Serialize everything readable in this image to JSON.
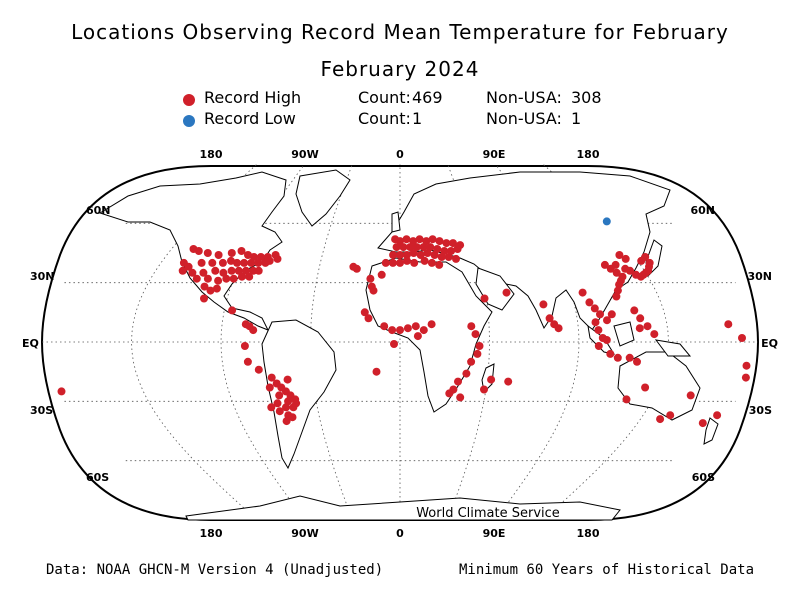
{
  "title": "Locations Observing Record Mean Temperature for February",
  "subtitle": "February 2024",
  "colors": {
    "record_high": "#d0202a",
    "record_low": "#2b77c0"
  },
  "legend": [
    {
      "label": "Record High",
      "count_label": "Count:",
      "count": "469",
      "nonusa_label": "Non-USA:",
      "nonusa": "308"
    },
    {
      "label": "Record Low",
      "count_label": "Count:",
      "count": "1",
      "nonusa_label": "Non-USA:",
      "nonusa": "1"
    }
  ],
  "axes": {
    "top_lon": [
      "180",
      "90W",
      "0",
      "90E",
      "180"
    ],
    "bottom_lon": [
      "180",
      "90W",
      "0",
      "90E",
      "180"
    ],
    "left_lat": [
      "60N",
      "30N",
      "EQ",
      "30S",
      "60S"
    ],
    "right_lat": [
      "60N",
      "30N",
      "EQ",
      "30S",
      "60S"
    ]
  },
  "credit": "World Climate Service",
  "footer": {
    "left": "Data: NOAA GHCN-M Version 4 (Unadjusted)",
    "right": "Minimum 60 Years of Historical Data"
  },
  "map_data": {
    "projection": "robinson",
    "record_low_points": [
      [
        137,
        61
      ]
    ],
    "record_high_points": [
      [
        -122,
        47
      ],
      [
        -118,
        46
      ],
      [
        -112,
        45
      ],
      [
        -105,
        44
      ],
      [
        -98,
        45
      ],
      [
        -93,
        46
      ],
      [
        -88,
        44
      ],
      [
        -84,
        43
      ],
      [
        -80,
        43
      ],
      [
        -76,
        43
      ],
      [
        -72,
        44
      ],
      [
        -70,
        42
      ],
      [
        -122,
        40
      ],
      [
        -118,
        38
      ],
      [
        -112,
        40
      ],
      [
        -106,
        40
      ],
      [
        -100,
        40
      ],
      [
        -96,
        41
      ],
      [
        -92,
        40
      ],
      [
        -88,
        40
      ],
      [
        -84,
        40
      ],
      [
        -80,
        40
      ],
      [
        -76,
        40
      ],
      [
        -74,
        41
      ],
      [
        -120,
        36
      ],
      [
        -114,
        35
      ],
      [
        -108,
        35
      ],
      [
        -102,
        36
      ],
      [
        -97,
        35
      ],
      [
        -93,
        36
      ],
      [
        -89,
        36
      ],
      [
        -85,
        36
      ],
      [
        -81,
        36
      ],
      [
        -78,
        36
      ],
      [
        -110,
        32
      ],
      [
        -104,
        32
      ],
      [
        -98,
        31
      ],
      [
        -94,
        32
      ],
      [
        -90,
        32
      ],
      [
        -86,
        33
      ],
      [
        -82,
        33
      ],
      [
        -104,
        28
      ],
      [
        -100,
        26
      ],
      [
        -97,
        27
      ],
      [
        -102,
        22
      ],
      [
        -86,
        16
      ],
      [
        -78,
        9
      ],
      [
        -76,
        8
      ],
      [
        -74,
        6
      ],
      [
        -78,
        -2
      ],
      [
        -77,
        -10
      ],
      [
        -72,
        -14
      ],
      [
        -66,
        -18
      ],
      [
        -64,
        -21
      ],
      [
        -62,
        -23
      ],
      [
        -60,
        -25
      ],
      [
        -58,
        -27
      ],
      [
        -56,
        -29
      ],
      [
        -60,
        -30
      ],
      [
        -64,
        -27
      ],
      [
        -66,
        -31
      ],
      [
        -62,
        -33
      ],
      [
        -58,
        -33
      ],
      [
        -56,
        -31
      ],
      [
        -62,
        -37
      ],
      [
        -64,
        -40
      ],
      [
        -60,
        -38
      ],
      [
        -70,
        -33
      ],
      [
        -66,
        -35
      ],
      [
        -68,
        -23
      ],
      [
        -58,
        -19
      ],
      [
        -3,
        52
      ],
      [
        0,
        51
      ],
      [
        4,
        52
      ],
      [
        8,
        51
      ],
      [
        12,
        52
      ],
      [
        16,
        51
      ],
      [
        20,
        52
      ],
      [
        24,
        51
      ],
      [
        28,
        50
      ],
      [
        32,
        50
      ],
      [
        36,
        49
      ],
      [
        -2,
        48
      ],
      [
        2,
        48
      ],
      [
        6,
        48
      ],
      [
        10,
        48
      ],
      [
        14,
        48
      ],
      [
        18,
        48
      ],
      [
        22,
        47
      ],
      [
        26,
        46
      ],
      [
        30,
        46
      ],
      [
        34,
        47
      ],
      [
        -4,
        44
      ],
      [
        0,
        44
      ],
      [
        4,
        44
      ],
      [
        8,
        45
      ],
      [
        12,
        44
      ],
      [
        16,
        45
      ],
      [
        20,
        44
      ],
      [
        24,
        43
      ],
      [
        28,
        43
      ],
      [
        32,
        42
      ],
      [
        -8,
        40
      ],
      [
        -4,
        40
      ],
      [
        0,
        40
      ],
      [
        4,
        41
      ],
      [
        8,
        40
      ],
      [
        14,
        41
      ],
      [
        18,
        40
      ],
      [
        22,
        39
      ],
      [
        -26,
        38
      ],
      [
        -24,
        37
      ],
      [
        -16,
        32
      ],
      [
        -15,
        28
      ],
      [
        -10,
        34
      ],
      [
        -14,
        26
      ],
      [
        -18,
        15
      ],
      [
        -16,
        12
      ],
      [
        -8,
        8
      ],
      [
        -4,
        6
      ],
      [
        0,
        6
      ],
      [
        4,
        7
      ],
      [
        8,
        8
      ],
      [
        12,
        6
      ],
      [
        16,
        9
      ],
      [
        9,
        3
      ],
      [
        -12,
        -15
      ],
      [
        -3,
        -1
      ],
      [
        36,
        8
      ],
      [
        38,
        4
      ],
      [
        40,
        -2
      ],
      [
        39,
        -6
      ],
      [
        36,
        -10
      ],
      [
        34,
        -16
      ],
      [
        30,
        -20
      ],
      [
        28,
        -24
      ],
      [
        26,
        -26
      ],
      [
        32,
        -28
      ],
      [
        47,
        -19
      ],
      [
        44,
        -24
      ],
      [
        56,
        -20
      ],
      [
        44,
        22
      ],
      [
        56,
        25
      ],
      [
        74,
        19
      ],
      [
        76,
        12
      ],
      [
        78,
        9
      ],
      [
        80,
        7
      ],
      [
        96,
        25
      ],
      [
        98,
        20
      ],
      [
        100,
        17
      ],
      [
        102,
        14
      ],
      [
        99,
        10
      ],
      [
        100,
        6
      ],
      [
        102,
        2
      ],
      [
        104,
        1
      ],
      [
        100,
        -2
      ],
      [
        106,
        -6
      ],
      [
        110,
        -8
      ],
      [
        116,
        -8
      ],
      [
        120,
        -10
      ],
      [
        105,
        11
      ],
      [
        108,
        14
      ],
      [
        120,
        16
      ],
      [
        122,
        12
      ],
      [
        121,
        7
      ],
      [
        125,
        8
      ],
      [
        128,
        4
      ],
      [
        113,
        23
      ],
      [
        115,
        26
      ],
      [
        117,
        29
      ],
      [
        119,
        31
      ],
      [
        121,
        33
      ],
      [
        119,
        35
      ],
      [
        117,
        37
      ],
      [
        115,
        39
      ],
      [
        121,
        39
      ],
      [
        125,
        37
      ],
      [
        127,
        36
      ],
      [
        129,
        34
      ],
      [
        131,
        33
      ],
      [
        133,
        34
      ],
      [
        135,
        35
      ],
      [
        137,
        36
      ],
      [
        139,
        38
      ],
      [
        141,
        40
      ],
      [
        141,
        43
      ],
      [
        137,
        41
      ],
      [
        127,
        44
      ],
      [
        129,
        42
      ],
      [
        121,
        -29
      ],
      [
        128,
        -23
      ],
      [
        146,
        -39
      ],
      [
        150,
        -37
      ],
      [
        154,
        -27
      ],
      [
        172,
        -41
      ],
      [
        176,
        -37
      ],
      [
        178,
        -18
      ],
      [
        166,
        9
      ],
      [
        172,
        2
      ],
      [
        176,
        -12
      ],
      [
        -178,
        -25
      ]
    ]
  }
}
